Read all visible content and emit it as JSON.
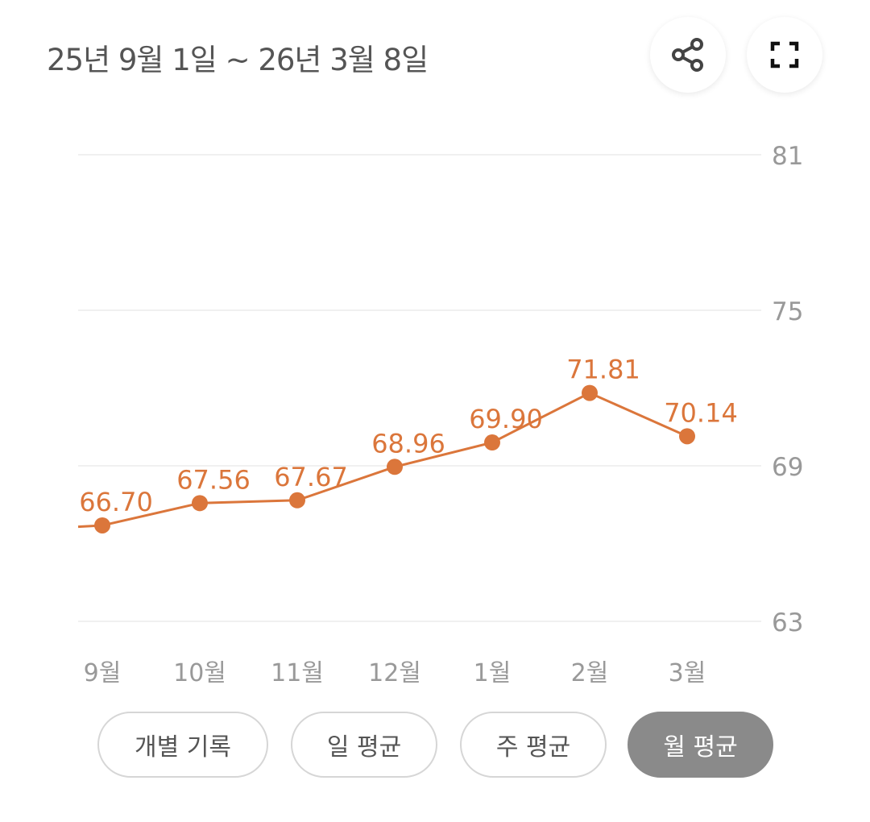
{
  "header": {
    "title": "25년 9월 1일 ~ 26년 3월 8일",
    "share_icon": "share-icon",
    "fullscreen_icon": "fullscreen-icon"
  },
  "chart_data": {
    "type": "line",
    "categories": [
      "9월",
      "10월",
      "11월",
      "12월",
      "1월",
      "2월",
      "3월"
    ],
    "values": [
      66.7,
      67.56,
      67.67,
      68.96,
      69.9,
      71.81,
      70.14
    ],
    "value_labels": [
      "66.70",
      "67.56",
      "67.67",
      "68.96",
      "69.90",
      "71.81",
      "70.14"
    ],
    "yticks": [
      "81",
      "75",
      "69",
      "63"
    ],
    "ylim": [
      63,
      81
    ],
    "y_axis_position": "right",
    "grid": true,
    "line_color": "#DB763B",
    "incoming_value_left": 66.65
  },
  "period_buttons": [
    {
      "label": "개별 기록",
      "active": false
    },
    {
      "label": "일 평균",
      "active": false
    },
    {
      "label": "주 평균",
      "active": false
    },
    {
      "label": "월 평균",
      "active": true
    }
  ]
}
